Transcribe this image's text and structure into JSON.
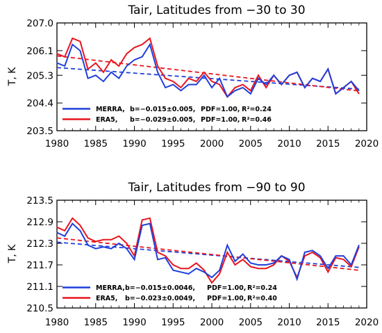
{
  "chart_data": [
    {
      "type": "line",
      "title": "Tair, Latitudes from −30 to 30",
      "ylabel": "T, K",
      "xlabel": "",
      "xlim": [
        1980,
        2020
      ],
      "ylim": [
        203.5,
        207.0
      ],
      "xticks": [
        "1980",
        "1985",
        "1990",
        "1995",
        "2000",
        "2005",
        "2010",
        "2015",
        "2020"
      ],
      "yticks": [
        "203.5",
        "204.4",
        "205.3",
        "206.1",
        "207.0"
      ],
      "ytick_values": [
        203.5,
        204.4,
        205.3,
        206.1,
        207.0
      ],
      "x": [
        1980,
        1981,
        1982,
        1983,
        1984,
        1985,
        1986,
        1987,
        1988,
        1989,
        1990,
        1991,
        1992,
        1993,
        1994,
        1995,
        1996,
        1997,
        1998,
        1999,
        2000,
        2001,
        2002,
        2003,
        2004,
        2005,
        2006,
        2007,
        2008,
        2009,
        2010,
        2011,
        2012,
        2013,
        2014,
        2015,
        2016,
        2017,
        2018,
        2019
      ],
      "series": [
        {
          "name": "MERRA",
          "color": "#1f3fdc",
          "values": [
            205.7,
            205.6,
            206.3,
            206.1,
            205.2,
            205.3,
            205.1,
            205.4,
            205.2,
            205.6,
            205.8,
            205.9,
            206.3,
            205.4,
            204.9,
            205.0,
            204.8,
            205.0,
            205.0,
            205.3,
            204.9,
            205.2,
            204.6,
            204.8,
            204.9,
            204.7,
            205.2,
            205.0,
            205.3,
            205.0,
            205.3,
            205.4,
            204.9,
            205.2,
            205.1,
            205.5,
            204.7,
            204.9,
            205.1,
            204.8
          ],
          "trend": [
            205.55,
            204.85
          ]
        },
        {
          "name": "ERA5",
          "color": "#e8141c",
          "values": [
            206.0,
            205.9,
            206.5,
            206.4,
            205.5,
            205.7,
            205.4,
            205.8,
            205.6,
            206.0,
            206.2,
            206.3,
            206.5,
            205.6,
            205.2,
            205.1,
            204.9,
            205.2,
            205.1,
            205.4,
            205.1,
            205.0,
            204.6,
            204.9,
            205.0,
            204.8,
            205.3,
            204.9,
            205.3,
            205.0,
            205.3,
            205.4,
            204.9,
            205.2,
            205.1,
            205.5,
            204.7,
            204.9,
            205.1,
            204.7
          ],
          "trend": [
            205.93,
            204.79
          ]
        }
      ],
      "legend": {
        "position": "bottom-left",
        "entries": [
          {
            "name": "MERRA",
            "b": "b=−0.015±0.005,",
            "pdf": "PDF=1.00,",
            "r2": "R²=0.24"
          },
          {
            "name": "ERA5",
            "b": "b=−0.029±0.005,",
            "pdf": "PDF=1.00,",
            "r2": "R²=0.46"
          }
        ]
      }
    },
    {
      "type": "line",
      "title": "Tair, Latitudes from −90 to 90",
      "ylabel": "T, K",
      "xlabel": "",
      "xlim": [
        1980,
        2020
      ],
      "ylim": [
        210.5,
        213.5
      ],
      "xticks": [
        "1980",
        "1985",
        "1990",
        "1995",
        "2000",
        "2005",
        "2010",
        "2015",
        "2020"
      ],
      "yticks": [
        "210.5",
        "211.1",
        "211.7",
        "212.3",
        "212.9",
        "213.5"
      ],
      "ytick_values": [
        210.5,
        211.1,
        211.7,
        212.3,
        212.9,
        213.5
      ],
      "x": [
        1980,
        1981,
        1982,
        1983,
        1984,
        1985,
        1986,
        1987,
        1988,
        1989,
        1990,
        1991,
        1992,
        1993,
        1994,
        1995,
        1996,
        1997,
        1998,
        1999,
        2000,
        2001,
        2002,
        2003,
        2004,
        2005,
        2006,
        2007,
        2008,
        2009,
        2010,
        2011,
        2012,
        2013,
        2014,
        2015,
        2016,
        2017,
        2018,
        2019
      ],
      "series": [
        {
          "name": "MERRA",
          "color": "#1f3fdc",
          "values": [
            212.6,
            212.5,
            212.85,
            212.65,
            212.25,
            212.15,
            212.2,
            212.15,
            212.3,
            212.15,
            211.85,
            212.8,
            212.85,
            211.85,
            211.9,
            211.55,
            211.5,
            211.45,
            211.6,
            211.5,
            211.35,
            211.55,
            212.25,
            211.8,
            212.0,
            211.75,
            211.7,
            211.7,
            211.75,
            211.95,
            211.85,
            211.3,
            212.05,
            212.1,
            211.95,
            211.6,
            211.95,
            211.95,
            211.7,
            212.25
          ],
          "trend": [
            212.33,
            211.63
          ]
        },
        {
          "name": "ERA5",
          "color": "#e8141c",
          "values": [
            212.75,
            212.65,
            213.0,
            212.8,
            212.45,
            212.35,
            212.4,
            212.4,
            212.5,
            212.3,
            211.95,
            212.95,
            213.0,
            212.05,
            211.95,
            211.7,
            211.6,
            211.6,
            211.75,
            211.55,
            211.2,
            211.45,
            212.05,
            211.7,
            211.85,
            211.65,
            211.6,
            211.6,
            211.7,
            211.95,
            211.8,
            211.35,
            211.95,
            212.05,
            211.9,
            211.5,
            211.9,
            211.85,
            211.65,
            212.2
          ],
          "trend": [
            212.45,
            211.55
          ]
        }
      ],
      "legend": {
        "position": "bottom-left",
        "entries": [
          {
            "name": "MERRA",
            "b": "b=−0.015±0.0046,",
            "pdf": "PDF=1.00,",
            "r2": "R²=0.24"
          },
          {
            "name": "ERA5",
            "b": "b=−0.023±0.0049,",
            "pdf": "PDF=1.00,",
            "r2": "R²=0.40"
          }
        ]
      }
    }
  ]
}
